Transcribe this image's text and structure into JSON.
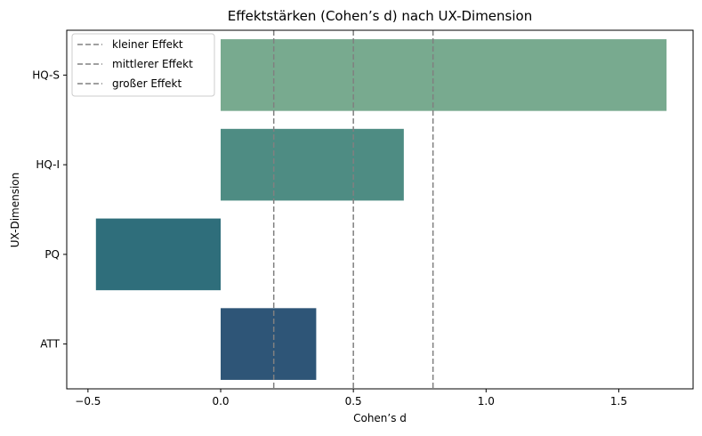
{
  "chart_data": {
    "type": "bar",
    "orientation": "horizontal",
    "title": "Effektstärken (Cohen’s d) nach UX-Dimension",
    "xlabel": "Cohen’s d",
    "ylabel": "UX-Dimension",
    "categories": [
      "HQ-S",
      "HQ-I",
      "PQ",
      "ATT"
    ],
    "values": [
      1.68,
      0.69,
      -0.47,
      0.36
    ],
    "colors": [
      "#78aa8f",
      "#4e8c83",
      "#2f6e7b",
      "#2e5577"
    ],
    "xlim": [
      -0.58,
      1.78
    ],
    "xticks": [
      -0.5,
      0.0,
      0.5,
      1.0,
      1.5
    ],
    "xtick_labels": [
      "−0.5",
      "0.0",
      "0.5",
      "1.0",
      "1.5"
    ],
    "reference_lines": [
      {
        "label": "kleiner Effekt",
        "x": 0.2,
        "color": "#808080"
      },
      {
        "label": "mittlerer Effekt",
        "x": 0.5,
        "color": "#808080"
      },
      {
        "label": "großer Effekt",
        "x": 0.8,
        "color": "#808080"
      }
    ],
    "grid": false,
    "legend_position": "top-left"
  }
}
